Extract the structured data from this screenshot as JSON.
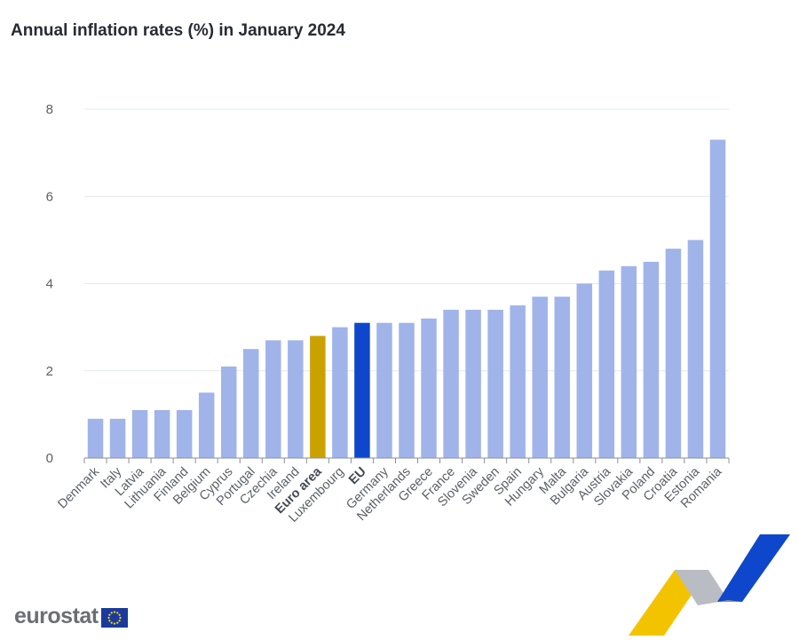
{
  "chart_data": {
    "type": "bar",
    "title": "Annual inflation rates (%) in January 2024",
    "xlabel": "",
    "ylabel": "",
    "ylim": [
      0,
      8
    ],
    "yticks": [
      0,
      2,
      4,
      6,
      8
    ],
    "grid": true,
    "categories": [
      "Denmark",
      "Italy",
      "Latvia",
      "Lithuania",
      "Finland",
      "Belgium",
      "Cyprus",
      "Portugal",
      "Czechia",
      "Ireland",
      "Euro area",
      "Luxembourg",
      "EU",
      "Germany",
      "Netherlands",
      "Greece",
      "France",
      "Slovenia",
      "Sweden",
      "Spain",
      "Hungary",
      "Malta",
      "Bulgaria",
      "Austria",
      "Slovakia",
      "Poland",
      "Croatia",
      "Estonia",
      "Romania"
    ],
    "values": [
      0.9,
      0.9,
      1.1,
      1.1,
      1.1,
      1.5,
      2.1,
      2.5,
      2.7,
      2.7,
      2.8,
      3.0,
      3.1,
      3.1,
      3.1,
      3.2,
      3.4,
      3.4,
      3.4,
      3.5,
      3.7,
      3.7,
      4.0,
      4.3,
      4.4,
      4.5,
      4.8,
      5.0,
      7.3
    ],
    "highlighted": [
      "Euro area",
      "EU"
    ],
    "colors": {
      "default": "#a0b4ea",
      "Euro area": "#caa200",
      "EU": "#0e47cb",
      "grid": "#e4e7ee",
      "axis": "#8a8f98"
    }
  },
  "branding": {
    "logo_text": "eurostat",
    "logo_icon": "eu-flag-icon",
    "decoration_icon": "eurostat-ribbon-icon"
  }
}
